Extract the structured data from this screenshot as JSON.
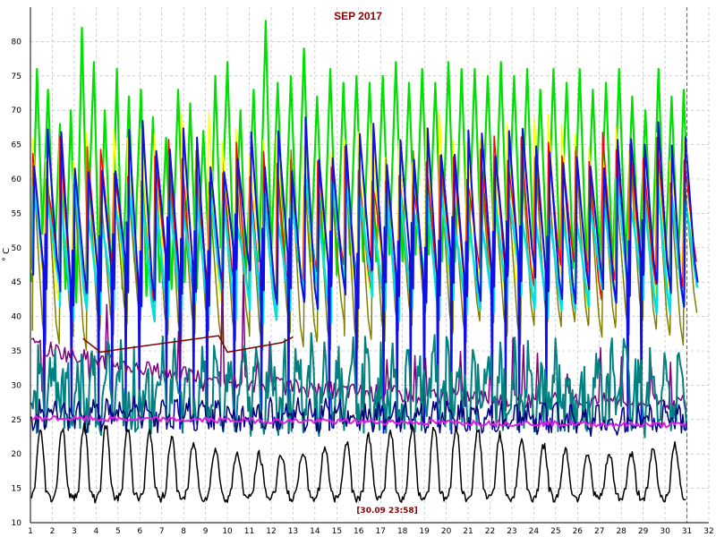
{
  "chart_data": {
    "type": "line",
    "title": "SEP 2017",
    "ylabel": "° C",
    "xlabel": "",
    "xlim": [
      1,
      32
    ],
    "ylim": [
      10,
      85
    ],
    "x_ticks": [
      "1",
      "2",
      "3",
      "4",
      "5",
      "6",
      "7",
      "8",
      "9",
      "10",
      "11",
      "12",
      "13",
      "14",
      "15",
      "16",
      "17",
      "18",
      "19",
      "20",
      "21",
      "22",
      "23",
      "24",
      "25",
      "26",
      "27",
      "28",
      "29",
      "30",
      "31",
      "32"
    ],
    "y_ticks": [
      "10",
      "15",
      "20",
      "25",
      "30",
      "35",
      "40",
      "45",
      "50",
      "55",
      "60",
      "65",
      "70",
      "75",
      "80"
    ],
    "grid": true,
    "legend": "none",
    "cursor_label": "[30.09 23:58]",
    "cursor_x": 31,
    "series": [
      {
        "color": "#00e000",
        "width": 2.2,
        "kind": "spiky",
        "peak_day": 75,
        "base": 51,
        "points": [
          [
            1.05,
            45
          ],
          [
            1.3,
            76
          ],
          [
            1.55,
            52
          ],
          [
            1.8,
            73
          ],
          [
            2.1,
            48
          ],
          [
            2.35,
            68
          ],
          [
            2.6,
            44
          ],
          [
            2.85,
            70
          ],
          [
            3.1,
            42
          ],
          [
            3.35,
            82
          ],
          [
            3.6,
            50
          ],
          [
            3.9,
            77
          ],
          [
            4.15,
            44
          ],
          [
            4.4,
            70
          ],
          [
            4.7,
            45
          ],
          [
            4.95,
            76
          ],
          [
            5.2,
            44
          ],
          [
            5.5,
            72
          ],
          [
            5.75,
            48
          ],
          [
            6.05,
            73
          ],
          [
            6.3,
            43
          ],
          [
            6.6,
            69
          ],
          [
            6.9,
            45
          ],
          [
            7.2,
            66
          ],
          [
            7.45,
            44
          ],
          [
            7.75,
            73
          ],
          [
            8.05,
            45
          ],
          [
            8.3,
            71
          ],
          [
            8.6,
            44
          ],
          [
            8.9,
            67
          ],
          [
            9.2,
            46
          ],
          [
            9.45,
            75
          ],
          [
            9.7,
            50
          ],
          [
            10.0,
            77
          ],
          [
            10.3,
            46
          ],
          [
            10.6,
            70
          ],
          [
            10.85,
            46
          ],
          [
            11.2,
            73
          ],
          [
            11.45,
            48
          ],
          [
            11.75,
            83
          ],
          [
            12.0,
            49
          ],
          [
            12.3,
            74
          ],
          [
            12.6,
            48
          ],
          [
            12.9,
            75
          ],
          [
            13.2,
            48
          ],
          [
            13.5,
            79
          ],
          [
            13.8,
            48
          ],
          [
            14.1,
            72
          ],
          [
            14.4,
            47
          ],
          [
            14.7,
            76
          ],
          [
            15.0,
            46
          ],
          [
            15.3,
            74
          ],
          [
            15.6,
            49
          ],
          [
            15.9,
            75
          ],
          [
            16.2,
            48
          ],
          [
            16.5,
            74
          ],
          [
            16.8,
            48
          ],
          [
            17.1,
            75
          ],
          [
            17.4,
            49
          ],
          [
            17.7,
            77
          ],
          [
            18.0,
            48
          ],
          [
            18.3,
            74
          ],
          [
            18.6,
            49
          ],
          [
            18.9,
            76
          ],
          [
            19.2,
            49
          ],
          [
            19.5,
            74
          ],
          [
            19.8,
            48
          ],
          [
            20.1,
            77
          ],
          [
            20.4,
            48
          ],
          [
            20.7,
            76
          ],
          [
            21.0,
            48
          ],
          [
            21.3,
            76
          ],
          [
            21.6,
            49
          ],
          [
            21.9,
            75
          ],
          [
            22.2,
            49
          ],
          [
            22.5,
            77
          ],
          [
            22.8,
            49
          ],
          [
            23.1,
            75
          ],
          [
            23.4,
            49
          ],
          [
            23.7,
            76
          ],
          [
            24.0,
            48
          ],
          [
            24.3,
            73
          ],
          [
            24.6,
            48
          ],
          [
            24.9,
            76
          ],
          [
            25.2,
            48
          ],
          [
            25.5,
            74
          ],
          [
            25.8,
            47
          ],
          [
            26.1,
            76
          ],
          [
            26.4,
            48
          ],
          [
            26.7,
            73
          ],
          [
            27.0,
            48
          ],
          [
            27.3,
            74
          ],
          [
            27.6,
            47
          ],
          [
            27.9,
            76
          ],
          [
            28.2,
            48
          ],
          [
            28.5,
            72
          ],
          [
            28.8,
            47
          ],
          [
            29.1,
            70
          ],
          [
            29.4,
            48
          ],
          [
            29.7,
            76
          ],
          [
            30.0,
            47
          ],
          [
            30.3,
            72
          ],
          [
            30.6,
            47
          ],
          [
            30.85,
            73
          ],
          [
            31.0,
            60
          ]
        ]
      },
      {
        "color": "#ffff00",
        "width": 1.5,
        "kind": "sawtooth",
        "peak": 66,
        "trough": 44,
        "offset": 0
      },
      {
        "color": "#ff0000",
        "width": 1.5,
        "kind": "sawtooth",
        "peak": 63,
        "trough": 45,
        "offset": 0.02
      },
      {
        "color": "#808000",
        "width": 1.5,
        "kind": "sawtooth",
        "peak": 61,
        "trough": 38,
        "offset": 0.04
      },
      {
        "color": "#00e0e0",
        "width": 2.5,
        "kind": "sawtooth",
        "peak": 57,
        "trough": 42,
        "offset": 0.06
      },
      {
        "color": "#1010e0",
        "width": 2,
        "kind": "sawtooth_dip",
        "peak": 65,
        "trough": 44,
        "dip": 23,
        "offset": 0.08
      },
      {
        "color": "#800080",
        "width": 1.5,
        "kind": "decay",
        "start": 36,
        "mid": 27,
        "peak_high": 49,
        "peak_low": 29
      },
      {
        "color": "#008080",
        "width": 2,
        "kind": "noisy",
        "base": 30,
        "amp": 7,
        "dip": 23
      },
      {
        "color": "#000080",
        "width": 1.5,
        "kind": "noisy_low",
        "base": 26,
        "amp": 3
      },
      {
        "color": "#e020e0",
        "width": 2,
        "kind": "flat",
        "start": 25.2,
        "end": 24.2
      },
      {
        "color": "#800000",
        "width": 1.5,
        "kind": "ramp",
        "points": [
          [
            3.4,
            36.8
          ],
          [
            4.2,
            34.8
          ],
          [
            5.0,
            35.2
          ],
          [
            9.6,
            37.2
          ],
          [
            10.0,
            34.8
          ],
          [
            12.5,
            36.2
          ],
          [
            13.0,
            37.0
          ]
        ]
      },
      {
        "color": "#000000",
        "width": 1.5,
        "kind": "ambient",
        "base": 15,
        "amp": 7
      }
    ]
  }
}
